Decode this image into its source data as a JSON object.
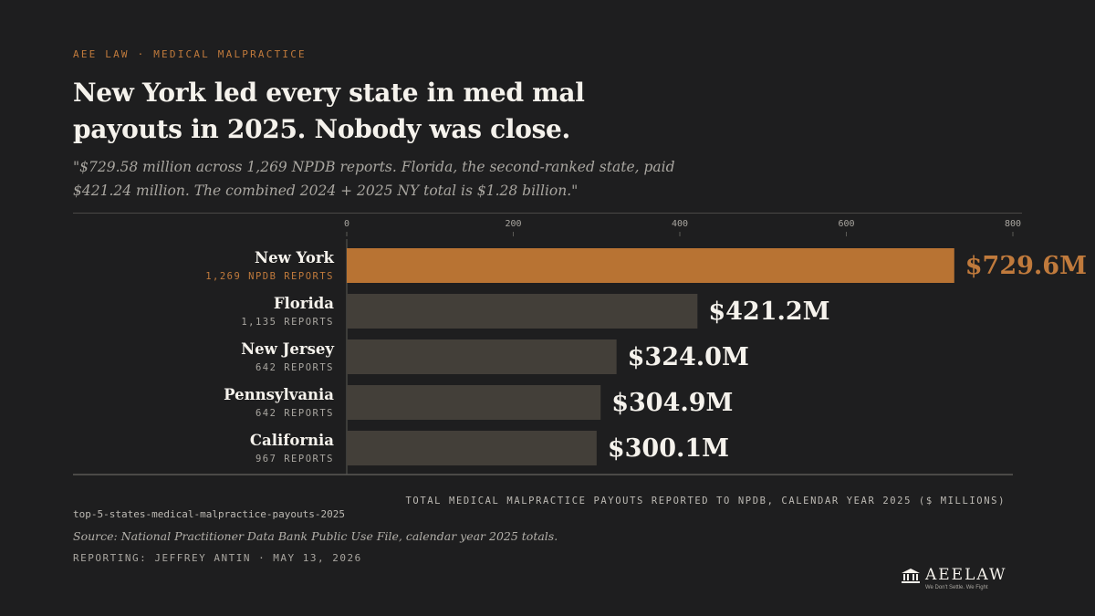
{
  "kicker": "AEE LAW · MEDICAL MALPRACTICE",
  "headline": "New York led every state in med mal payouts in 2025. Nobody was close.",
  "dek": "\"$729.58 million across 1,269 NPDB reports. Florida, the second-ranked state, paid $421.24 million. The combined 2024 + 2025 NY total is $1.28 billion.\"",
  "colors": {
    "background": "#1e1e1f",
    "highlight_bar": "#b87333",
    "bar": "#433f39",
    "accent_text": "#c07a3c",
    "muted_text": "#a9a6a0",
    "axis": "#5a5955"
  },
  "chart_data": {
    "type": "bar",
    "orientation": "horizontal",
    "categories": [
      "New York",
      "Florida",
      "New Jersey",
      "Pennsylvania",
      "California"
    ],
    "sublabels": [
      "1,269 NPDB REPORTS",
      "1,135 REPORTS",
      "642 REPORTS",
      "642 REPORTS",
      "967 REPORTS"
    ],
    "values": [
      729.6,
      421.2,
      324.0,
      304.9,
      300.1
    ],
    "value_labels": [
      "$729.6M",
      "$421.2M",
      "$324.0M",
      "$304.9M",
      "$300.1M"
    ],
    "highlight_index": 0,
    "xlim": [
      0,
      800
    ],
    "xticks": [
      0,
      200,
      400,
      600,
      800
    ],
    "xlabel": "TOTAL MEDICAL MALPRACTICE PAYOUTS REPORTED TO NPDB, CALENDAR YEAR 2025 ($ MILLIONS)",
    "grid": false,
    "legend": "none"
  },
  "footer": {
    "source_id": "top-5-states-medical-malpractice-payouts-2025",
    "source": "Source: National Practitioner Data Bank Public Use File, calendar year 2025 totals.",
    "byline": "REPORTING: JEFFREY ANTIN · MAY 13, 2026"
  },
  "logo": {
    "icon": "courthouse-icon",
    "text": "AEELAW",
    "tagline": "We Don't Settle. We Fight"
  }
}
